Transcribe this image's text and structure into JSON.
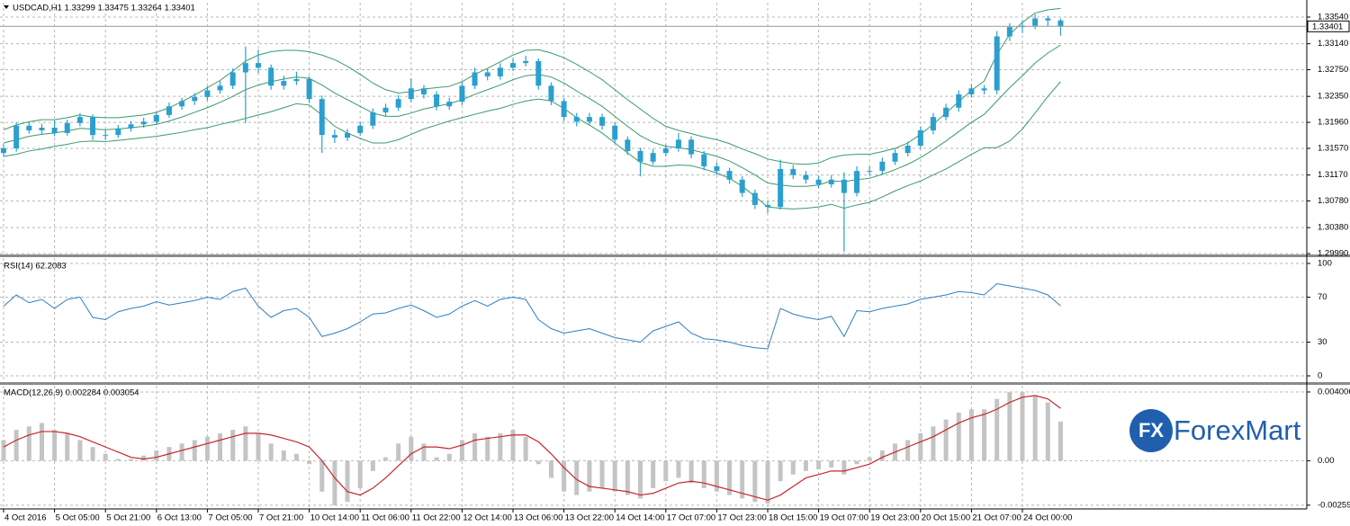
{
  "chart_data": [
    {
      "type": "candlestick",
      "title": "USDCAD,H1 1.33299 1.33475 1.33264 1.33401",
      "categories": [
        "4 Oct 2016",
        null,
        null,
        null,
        "5 Oct 05:00",
        null,
        null,
        null,
        "5 Oct 21:00",
        null,
        null,
        null,
        "6 Oct 13:00",
        null,
        null,
        null,
        "7 Oct 05:00",
        null,
        null,
        null,
        "7 Oct 21:00",
        null,
        null,
        null,
        "10 Oct 14:00",
        null,
        null,
        null,
        "11 Oct 06:00",
        null,
        null,
        null,
        "11 Oct 22:00",
        null,
        null,
        null,
        "12 Oct 14:00",
        null,
        null,
        null,
        "13 Oct 06:00",
        null,
        null,
        null,
        "13 Oct 22:00",
        null,
        null,
        null,
        "14 Oct 14:00",
        null,
        null,
        null,
        "17 Oct 07:00",
        null,
        null,
        null,
        "17 Oct 23:00",
        null,
        null,
        null,
        "18 Oct 15:00",
        null,
        null,
        null,
        "19 Oct 07:00",
        null,
        null,
        null,
        "19 Oct 23:00",
        null,
        null,
        null,
        "20 Oct 15:00",
        null,
        null,
        null,
        "21 Oct 07:00",
        null,
        null,
        null,
        "24 Oct 00:00",
        null,
        null,
        null
      ],
      "open": [
        1.315,
        1.3157,
        1.3191,
        1.3184,
        1.3188,
        1.318,
        1.3195,
        1.3204,
        1.3177,
        1.3177,
        1.3187,
        1.3193,
        1.3197,
        1.3207,
        1.322,
        1.3228,
        1.3234,
        1.3244,
        1.3251,
        1.3271,
        1.3285,
        1.3278,
        1.3251,
        1.3258,
        1.3261,
        1.3231,
        1.3177,
        1.3173,
        1.318,
        1.3191,
        1.3211,
        1.3218,
        1.3231,
        1.3247,
        1.3238,
        1.322,
        1.3227,
        1.3251,
        1.3271,
        1.3265,
        1.3278,
        1.3285,
        1.3288,
        1.3251,
        1.3228,
        1.3204,
        1.3197,
        1.3204,
        1.3191,
        1.317,
        1.3153,
        1.3137,
        1.315,
        1.3157,
        1.317,
        1.3148,
        1.313,
        1.3123,
        1.311,
        1.309,
        1.3072,
        1.3069,
        1.3126,
        1.3117,
        1.311,
        1.3103,
        1.311,
        1.309,
        1.3123,
        1.3123,
        1.3137,
        1.315,
        1.3161,
        1.3184,
        1.3204,
        1.3218,
        1.3238,
        1.3247,
        1.3244,
        1.3325,
        1.3339,
        1.3341,
        1.3352,
        1.3349
      ],
      "high": [
        1.3163,
        1.3196,
        1.3197,
        1.3194,
        1.3199,
        1.32,
        1.321,
        1.3208,
        1.3184,
        1.3192,
        1.3198,
        1.3203,
        1.3212,
        1.3226,
        1.3233,
        1.324,
        1.325,
        1.3258,
        1.3277,
        1.331,
        1.3305,
        1.3283,
        1.3266,
        1.3272,
        1.3265,
        1.3236,
        1.3185,
        1.3186,
        1.3197,
        1.3217,
        1.3224,
        1.3237,
        1.3262,
        1.3252,
        1.3243,
        1.3233,
        1.3257,
        1.3278,
        1.3276,
        1.3285,
        1.3292,
        1.3296,
        1.3292,
        1.3256,
        1.3233,
        1.321,
        1.321,
        1.3209,
        1.3196,
        1.3175,
        1.3158,
        1.3156,
        1.3163,
        1.318,
        1.3175,
        1.3153,
        1.3136,
        1.3128,
        1.3115,
        1.3095,
        1.3078,
        1.314,
        1.3132,
        1.3123,
        1.3116,
        1.3117,
        1.3121,
        1.313,
        1.313,
        1.3143,
        1.3156,
        1.3167,
        1.319,
        1.321,
        1.3224,
        1.3244,
        1.3253,
        1.3252,
        1.3333,
        1.3345,
        1.3348,
        1.3358,
        1.3356,
        1.3352
      ],
      "low": [
        1.3144,
        1.3152,
        1.3179,
        1.3178,
        1.3175,
        1.3176,
        1.319,
        1.317,
        1.317,
        1.3173,
        1.3182,
        1.3188,
        1.3192,
        1.3203,
        1.3215,
        1.3222,
        1.3229,
        1.3239,
        1.3246,
        1.3195,
        1.327,
        1.3245,
        1.3245,
        1.3252,
        1.3225,
        1.315,
        1.3165,
        1.3168,
        1.3176,
        1.3186,
        1.3205,
        1.3213,
        1.3226,
        1.3232,
        1.3214,
        1.3215,
        1.3222,
        1.3246,
        1.3259,
        1.326,
        1.3273,
        1.328,
        1.3245,
        1.3222,
        1.3198,
        1.319,
        1.3192,
        1.3185,
        1.3164,
        1.3147,
        1.3115,
        1.3132,
        1.3145,
        1.3152,
        1.3142,
        1.3124,
        1.3117,
        1.3104,
        1.3084,
        1.3066,
        1.306,
        1.3065,
        1.3111,
        1.3104,
        1.3097,
        1.3098,
        1.3002,
        1.3085,
        1.3116,
        1.3118,
        1.3132,
        1.3145,
        1.3156,
        1.3178,
        1.3199,
        1.3212,
        1.3233,
        1.3238,
        1.3238,
        1.3318,
        1.333,
        1.3336,
        1.334,
        1.3326
      ],
      "close": [
        1.3157,
        1.3191,
        1.3184,
        1.3188,
        1.318,
        1.3195,
        1.3204,
        1.3177,
        1.3177,
        1.3187,
        1.3193,
        1.3197,
        1.3207,
        1.322,
        1.3228,
        1.3234,
        1.3244,
        1.3251,
        1.3271,
        1.3285,
        1.3278,
        1.3251,
        1.3258,
        1.3261,
        1.3231,
        1.3177,
        1.3173,
        1.318,
        1.3191,
        1.3211,
        1.3218,
        1.3231,
        1.3247,
        1.3238,
        1.322,
        1.3227,
        1.3251,
        1.3271,
        1.3265,
        1.3278,
        1.3285,
        1.3288,
        1.3251,
        1.3228,
        1.3204,
        1.3197,
        1.3204,
        1.3191,
        1.317,
        1.3153,
        1.3137,
        1.315,
        1.3157,
        1.317,
        1.3148,
        1.313,
        1.3123,
        1.311,
        1.309,
        1.3072,
        1.3069,
        1.3126,
        1.3117,
        1.311,
        1.3103,
        1.311,
        1.309,
        1.3123,
        1.3123,
        1.3137,
        1.315,
        1.3161,
        1.3184,
        1.3204,
        1.3218,
        1.3238,
        1.3247,
        1.3244,
        1.3325,
        1.3339,
        1.3341,
        1.3352,
        1.3349,
        1.33401
      ],
      "color": "#2b9fcf",
      "bands": {
        "color": "#3a9a6a",
        "upper": [
          1.3185,
          1.3192,
          1.3197,
          1.32,
          1.32,
          1.3203,
          1.3207,
          1.3204,
          1.3203,
          1.3203,
          1.3205,
          1.3207,
          1.3211,
          1.3218,
          1.3227,
          1.3237,
          1.3248,
          1.3259,
          1.3273,
          1.3288,
          1.3297,
          1.3302,
          1.3304,
          1.3304,
          1.3302,
          1.3297,
          1.329,
          1.328,
          1.3268,
          1.3255,
          1.3245,
          1.324,
          1.3242,
          1.3246,
          1.3248,
          1.325,
          1.3257,
          1.3268,
          1.3277,
          1.3287,
          1.3297,
          1.3304,
          1.3305,
          1.33,
          1.3293,
          1.3283,
          1.3272,
          1.326,
          1.3245,
          1.323,
          1.3216,
          1.3202,
          1.319,
          1.3184,
          1.3179,
          1.3174,
          1.317,
          1.3164,
          1.3156,
          1.3149,
          1.3141,
          1.3137,
          1.3134,
          1.3133,
          1.3135,
          1.3143,
          1.3147,
          1.3148,
          1.3148,
          1.3152,
          1.3157,
          1.3165,
          1.3178,
          1.3193,
          1.321,
          1.3227,
          1.3244,
          1.3258,
          1.3298,
          1.3328,
          1.3346,
          1.336,
          1.3365,
          1.3367
        ],
        "middle": [
          1.3165,
          1.317,
          1.3175,
          1.3178,
          1.318,
          1.3183,
          1.3187,
          1.3186,
          1.3185,
          1.3186,
          1.3188,
          1.319,
          1.3193,
          1.3198,
          1.3204,
          1.3211,
          1.3218,
          1.3226,
          1.3235,
          1.3245,
          1.3252,
          1.3257,
          1.3261,
          1.3264,
          1.3262,
          1.3252,
          1.324,
          1.323,
          1.322,
          1.321,
          1.3205,
          1.3205,
          1.321,
          1.3216,
          1.322,
          1.3224,
          1.323,
          1.3238,
          1.3245,
          1.3252,
          1.326,
          1.3266,
          1.3268,
          1.3264,
          1.3255,
          1.3243,
          1.3232,
          1.322,
          1.3205,
          1.319,
          1.3176,
          1.3166,
          1.316,
          1.3158,
          1.3155,
          1.315,
          1.3145,
          1.3138,
          1.3128,
          1.3117,
          1.3105,
          1.3102,
          1.31,
          1.31,
          1.3102,
          1.3108,
          1.3107,
          1.311,
          1.3112,
          1.3118,
          1.3125,
          1.3133,
          1.3143,
          1.3155,
          1.3168,
          1.3182,
          1.3196,
          1.3208,
          1.3228,
          1.3248,
          1.3266,
          1.3285,
          1.33,
          1.3312
        ],
        "lower": [
          1.3145,
          1.3148,
          1.3153,
          1.3156,
          1.316,
          1.3163,
          1.3167,
          1.3168,
          1.3167,
          1.3169,
          1.3171,
          1.3173,
          1.3175,
          1.3178,
          1.3181,
          1.3185,
          1.3188,
          1.3193,
          1.3197,
          1.3202,
          1.3207,
          1.3212,
          1.3218,
          1.3224,
          1.3222,
          1.3207,
          1.319,
          1.318,
          1.3172,
          1.3165,
          1.3165,
          1.317,
          1.3178,
          1.3186,
          1.3192,
          1.3198,
          1.3203,
          1.3208,
          1.3213,
          1.3217,
          1.3223,
          1.3228,
          1.3231,
          1.3228,
          1.3217,
          1.3203,
          1.3192,
          1.318,
          1.3165,
          1.315,
          1.3136,
          1.313,
          1.313,
          1.3132,
          1.3131,
          1.3126,
          1.312,
          1.3112,
          1.31,
          1.3085,
          1.3069,
          1.3067,
          1.3066,
          1.3067,
          1.3069,
          1.3073,
          1.3067,
          1.3072,
          1.3076,
          1.3084,
          1.3093,
          1.3101,
          1.3108,
          1.3117,
          1.3126,
          1.3137,
          1.3148,
          1.3158,
          1.3158,
          1.3168,
          1.3186,
          1.321,
          1.3235,
          1.3257
        ]
      },
      "ylim": [
        1.29977,
        1.33756
      ],
      "yticks": [
        {
          "value": 1.2999,
          "label": "1.29990"
        },
        {
          "value": 1.3038,
          "label": "1.30380"
        },
        {
          "value": 1.3078,
          "label": "1.30780"
        },
        {
          "value": 1.3117,
          "label": "1.31170"
        },
        {
          "value": 1.3157,
          "label": "1.31570"
        },
        {
          "value": 1.3196,
          "label": "1.31960"
        },
        {
          "value": 1.3235,
          "label": "1.32350"
        },
        {
          "value": 1.3275,
          "label": "1.32750"
        },
        {
          "value": 1.3314,
          "label": "1.33140"
        },
        {
          "value": 1.3354,
          "label": "1.33540"
        }
      ],
      "grid": true
    },
    {
      "type": "line",
      "title": "RSI(14) 62.2083",
      "values": [
        62,
        72,
        65,
        68,
        60,
        68,
        70,
        52,
        50,
        57,
        60,
        62,
        66,
        63,
        65,
        67,
        70,
        68,
        75,
        78,
        62,
        52,
        58,
        60,
        52,
        35,
        38,
        42,
        48,
        55,
        56,
        60,
        63,
        58,
        52,
        55,
        62,
        67,
        62,
        68,
        70,
        68,
        50,
        42,
        38,
        40,
        42,
        38,
        34,
        32,
        30,
        40,
        44,
        48,
        38,
        33,
        32,
        30,
        27,
        25,
        24,
        60,
        55,
        52,
        50,
        53,
        35,
        58,
        57,
        60,
        62,
        64,
        68,
        70,
        72,
        75,
        74,
        72,
        82,
        80,
        78,
        76,
        72,
        62.2083
      ],
      "color": "#2f7fbf",
      "ylim": [
        -5.6,
        104.8
      ],
      "yticks": [
        0,
        30,
        70,
        100
      ],
      "grid": true
    },
    {
      "type": "bar",
      "title": "MACD(12,26,9) 0.002284 0.003054",
      "values": [
        0.0012,
        0.0018,
        0.002,
        0.0022,
        0.0018,
        0.0016,
        0.0012,
        0.0008,
        0.0004,
        0.0001,
        0.0001,
        0.0003,
        0.0006,
        0.0008,
        0.001,
        0.0012,
        0.0014,
        0.0016,
        0.0018,
        0.002,
        0.0016,
        0.001,
        0.0006,
        0.0004,
        -0.0002,
        -0.0018,
        -0.0026,
        -0.0024,
        -0.0016,
        -0.0006,
        0.0002,
        0.001,
        0.0014,
        0.001,
        0.0002,
        0.0004,
        0.0012,
        0.0016,
        0.0014,
        0.0016,
        0.0018,
        0.0014,
        -0.0002,
        -0.001,
        -0.0018,
        -0.002,
        -0.0018,
        -0.0016,
        -0.0018,
        -0.002,
        -0.0022,
        -0.0016,
        -0.0012,
        -0.001,
        -0.0013,
        -0.0016,
        -0.0018,
        -0.002,
        -0.0022,
        -0.0024,
        -0.0025,
        -0.0012,
        -0.0008,
        -0.0006,
        -0.0005,
        -0.0004,
        -0.0008,
        -0.0002,
        0.0002,
        0.0006,
        0.001,
        0.0012,
        0.0016,
        0.002,
        0.0024,
        0.0028,
        0.003,
        0.003,
        0.0036,
        0.004,
        0.004,
        0.0038,
        0.0034,
        0.002284
      ],
      "color": "#c4c4c4",
      "signal": {
        "color": "#c8262a",
        "values": [
          0.0008,
          0.0012,
          0.0015,
          0.0017,
          0.0017,
          0.0016,
          0.0014,
          0.0011,
          0.0008,
          0.0005,
          0.0002,
          0.0001,
          0.0002,
          0.0004,
          0.0006,
          0.0008,
          0.001,
          0.0012,
          0.0014,
          0.0016,
          0.0016,
          0.0015,
          0.0013,
          0.0011,
          0.0008,
          0.0,
          -0.001,
          -0.0018,
          -0.002,
          -0.0016,
          -0.001,
          -0.0003,
          0.0004,
          0.0008,
          0.0008,
          0.0007,
          0.0009,
          0.0012,
          0.0013,
          0.0014,
          0.0015,
          0.0015,
          0.0011,
          0.0004,
          -0.0004,
          -0.0011,
          -0.0015,
          -0.0016,
          -0.0017,
          -0.0018,
          -0.002,
          -0.0019,
          -0.0016,
          -0.0013,
          -0.0012,
          -0.0013,
          -0.0015,
          -0.0017,
          -0.0019,
          -0.0021,
          -0.0023,
          -0.002,
          -0.0015,
          -0.001,
          -0.0008,
          -0.0006,
          -0.0006,
          -0.0004,
          -0.0002,
          0.0002,
          0.0005,
          0.0008,
          0.0011,
          0.0014,
          0.0018,
          0.0022,
          0.0025,
          0.0027,
          0.003,
          0.0034,
          0.0037,
          0.0038,
          0.0036,
          0.003054
        ]
      },
      "ylim": [
        -0.002757,
        0.00437
      ],
      "yticks": [
        -0.002591,
        {
          "value": 0,
          "label": "0.00"
        },
        0.004006
      ],
      "grid": true
    }
  ],
  "watermark": {
    "badge": "FX",
    "text": "ForexMart"
  }
}
